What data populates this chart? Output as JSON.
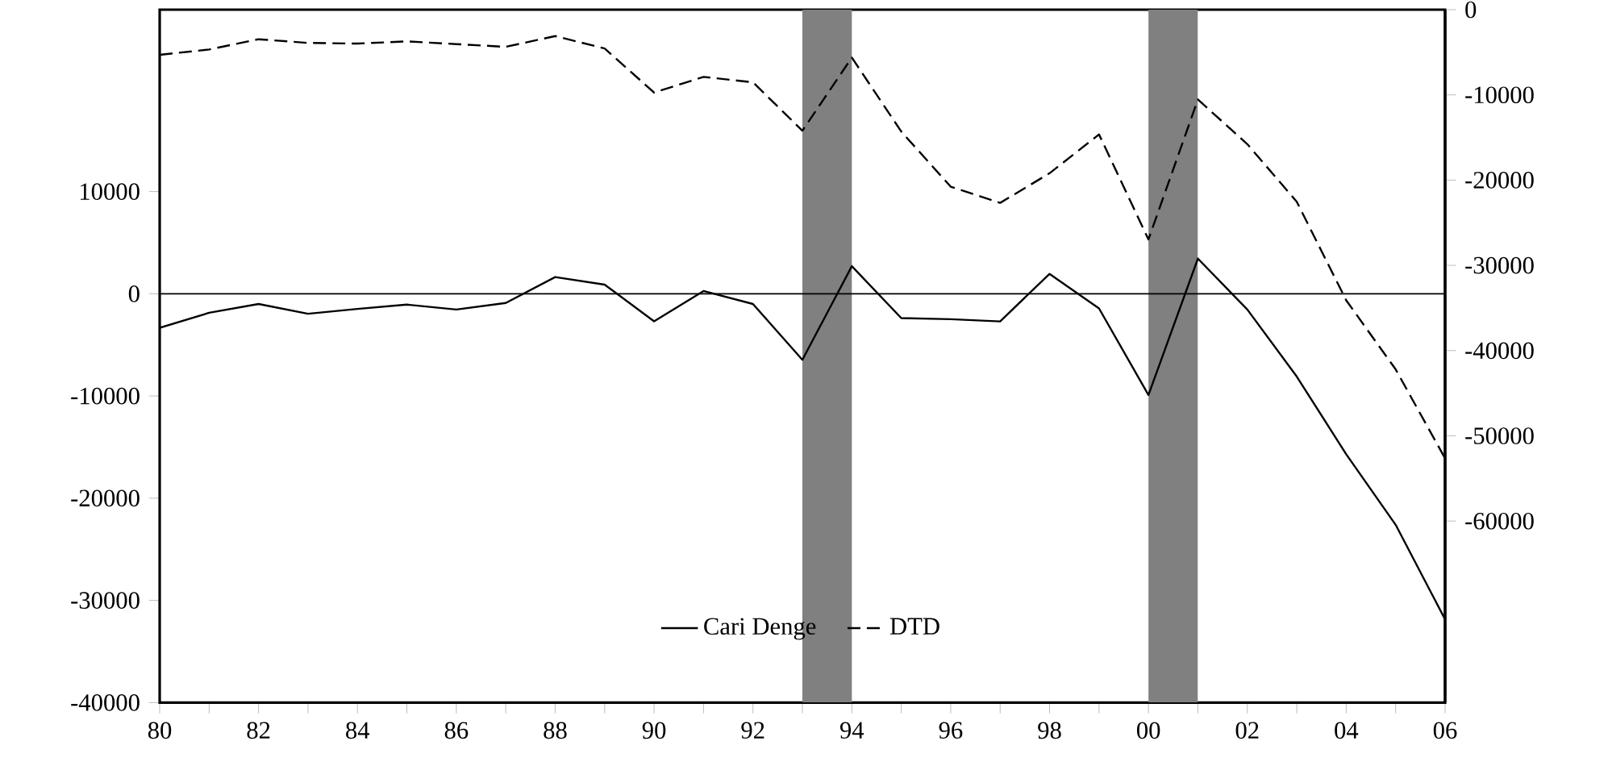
{
  "chart_data": {
    "type": "line",
    "x": [
      1980,
      1981,
      1982,
      1983,
      1984,
      1985,
      1986,
      1987,
      1988,
      1989,
      1990,
      1991,
      1992,
      1993,
      1994,
      1995,
      1996,
      1997,
      1998,
      1999,
      2000,
      2001,
      2002,
      2003,
      2004,
      2005,
      2006
    ],
    "series": [
      {
        "name": "Cari Denge",
        "color": "#000000",
        "line_style": "solid",
        "values": [
          -3330,
          -1860,
          -1000,
          -1950,
          -1480,
          -1060,
          -1540,
          -900,
          1640,
          900,
          -2700,
          270,
          -1000,
          -6460,
          2700,
          -2380,
          -2490,
          -2700,
          1950,
          -1430,
          -9900,
          3440,
          -1540,
          -8100,
          -15700,
          -22600,
          -31860
        ]
      },
      {
        "name": "DTD",
        "color": "#000000",
        "line_style": "dashed",
        "axis": "y2",
        "values": [
          -5300,
          -4670,
          -3470,
          -3900,
          -3980,
          -3720,
          -4040,
          -4360,
          -3100,
          -4550,
          -9720,
          -7890,
          -8520,
          -14200,
          -5620,
          -14300,
          -20770,
          -22670,
          -19190,
          -14640,
          -26960,
          -10540,
          -15780,
          -22540,
          -34100,
          -42200,
          -52650
        ]
      }
    ],
    "xlim": [
      1980,
      2006
    ],
    "xticks": [
      {
        "value": 1980,
        "label": "80"
      },
      {
        "value": 1981,
        "label": null
      },
      {
        "value": 1982,
        "label": "82"
      },
      {
        "value": 1983,
        "label": null
      },
      {
        "value": 1984,
        "label": "84"
      },
      {
        "value": 1985,
        "label": null
      },
      {
        "value": 1986,
        "label": "86"
      },
      {
        "value": 1987,
        "label": null
      },
      {
        "value": 1988,
        "label": "88"
      },
      {
        "value": 1989,
        "label": null
      },
      {
        "value": 1990,
        "label": "90"
      },
      {
        "value": 1991,
        "label": null
      },
      {
        "value": 1992,
        "label": "92"
      },
      {
        "value": 1993,
        "label": null
      },
      {
        "value": 1994,
        "label": "94"
      },
      {
        "value": 1995,
        "label": null
      },
      {
        "value": 1996,
        "label": "96"
      },
      {
        "value": 1997,
        "label": null
      },
      {
        "value": 1998,
        "label": "98"
      },
      {
        "value": 1999,
        "label": null
      },
      {
        "value": 2000,
        "label": "00"
      },
      {
        "value": 2001,
        "label": null
      },
      {
        "value": 2002,
        "label": "02"
      },
      {
        "value": 2003,
        "label": null
      },
      {
        "value": 2004,
        "label": "04"
      },
      {
        "value": 2005,
        "label": null
      },
      {
        "value": 2006,
        "label": "06"
      }
    ],
    "ylim": [
      -40000,
      27800
    ],
    "yticks": [
      10000,
      0,
      -10000,
      -20000,
      -30000,
      -40000
    ],
    "y2lim": [
      -81300,
      0
    ],
    "y2ticks": [
      0,
      -10000,
      -20000,
      -30000,
      -40000,
      -50000,
      -60000
    ],
    "ref_lines": [
      {
        "axis": "y",
        "value": 0,
        "color": "#000000"
      }
    ],
    "bands": [
      {
        "axis": "x",
        "from": 1993,
        "to": 1994,
        "color": "#808080"
      },
      {
        "axis": "x",
        "from": 2000,
        "to": 2001,
        "color": "#808080"
      }
    ],
    "legend": "bottom",
    "grid": false,
    "marker": "none"
  }
}
